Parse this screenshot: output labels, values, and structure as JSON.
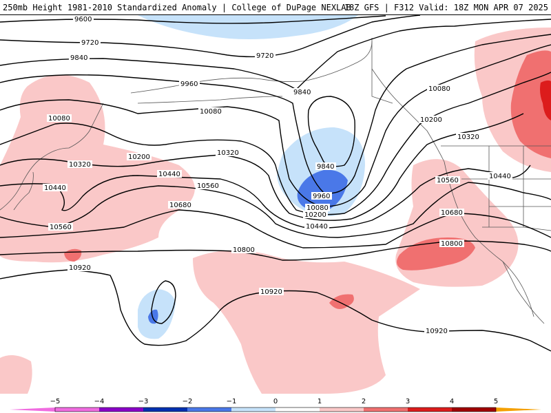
{
  "header": {
    "title_left": "250mb Height 1981-2010 Standardized Anomaly | College of DuPage NEXLAB",
    "title_right": "18Z GFS | F312 Valid: 18Z MON APR 07 2025"
  },
  "colors": {
    "neg5": "#f06ce0",
    "neg4": "#8a00c8",
    "neg3": "#0030b0",
    "neg2": "#4a78e8",
    "neg1": "#c6e2fa",
    "zero": "#ffffff",
    "pos1": "#fac8c8",
    "pos2": "#f07070",
    "pos3": "#dc1c1c",
    "pos4": "#a00000",
    "pos5": "#f4a000",
    "contour": "#000000",
    "borders": "#555555"
  },
  "contour_labels": [
    {
      "id": "9600",
      "text": "9600"
    },
    {
      "id": "9720a",
      "text": "9720"
    },
    {
      "id": "9720b",
      "text": "9720"
    },
    {
      "id": "9840a",
      "text": "9840"
    },
    {
      "id": "9840b",
      "text": "9840"
    },
    {
      "id": "9840c",
      "text": "9840"
    },
    {
      "id": "9960a",
      "text": "9960"
    },
    {
      "id": "9960b",
      "text": "9960"
    },
    {
      "id": "10080a",
      "text": "10080"
    },
    {
      "id": "10080b",
      "text": "10080"
    },
    {
      "id": "10080c",
      "text": "10080"
    },
    {
      "id": "10080d",
      "text": "10080"
    },
    {
      "id": "10200a",
      "text": "10200"
    },
    {
      "id": "10200b",
      "text": "10200"
    },
    {
      "id": "10200c",
      "text": "10200"
    },
    {
      "id": "10320a",
      "text": "10320"
    },
    {
      "id": "10320b",
      "text": "10320"
    },
    {
      "id": "10320c",
      "text": "10320"
    },
    {
      "id": "10440a",
      "text": "10440"
    },
    {
      "id": "10440b",
      "text": "10440"
    },
    {
      "id": "10440c",
      "text": "10440"
    },
    {
      "id": "10440d",
      "text": "10440"
    },
    {
      "id": "10560a",
      "text": "10560"
    },
    {
      "id": "10560b",
      "text": "10560"
    },
    {
      "id": "10560c",
      "text": "10560"
    },
    {
      "id": "10680a",
      "text": "10680"
    },
    {
      "id": "10680b",
      "text": "10680"
    },
    {
      "id": "10800a",
      "text": "10800"
    },
    {
      "id": "10800b",
      "text": "10800"
    },
    {
      "id": "10920a",
      "text": "10920"
    },
    {
      "id": "10920b",
      "text": "10920"
    },
    {
      "id": "10920c",
      "text": "10920"
    }
  ],
  "legend": {
    "ticks": [
      "−5",
      "−4",
      "−3",
      "−2",
      "−1",
      "0",
      "1",
      "2",
      "3",
      "4",
      "5"
    ]
  }
}
